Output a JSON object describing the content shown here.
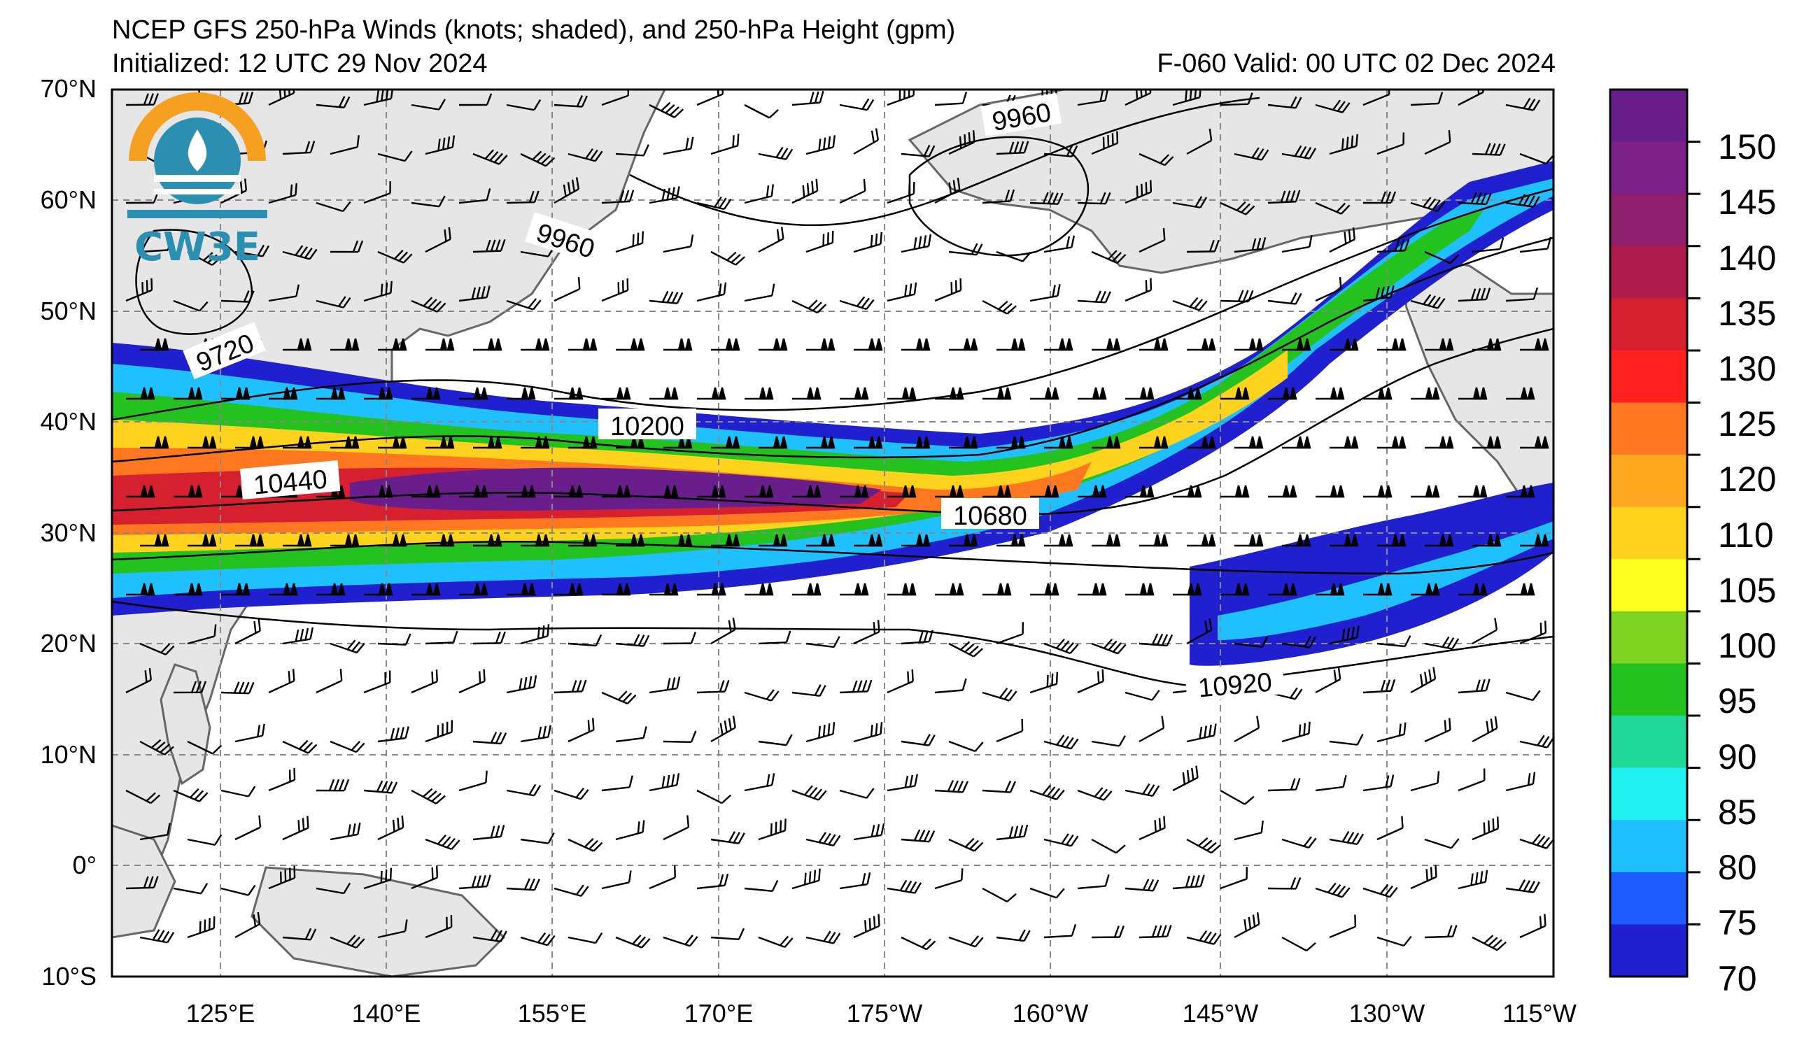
{
  "title": {
    "line1": "NCEP GFS 250-hPa Winds (knots; shaded), and 250-hPa Height (gpm)",
    "line2": "Initialized: 12 UTC 29 Nov 2024",
    "valid": "F-060  Valid: 00 UTC 02 Dec 2024"
  },
  "logo": {
    "text": "CW3E",
    "icon": "cw3e-logo-icon",
    "colors": {
      "orange": "#f5a021",
      "teal": "#2a8fb0"
    }
  },
  "map": {
    "projection": "cylindrical",
    "lon_range": [
      "115°E",
      "115°W"
    ],
    "lat_range": [
      -10,
      70
    ],
    "grid": "dashed",
    "land_color": "#e6e6e6",
    "coast_color": "#666666"
  },
  "lat_labels": [
    "70°N",
    "60°N",
    "50°N",
    "40°N",
    "30°N",
    "20°N",
    "10°N",
    "0°",
    "10°S"
  ],
  "lon_labels": [
    "125°E",
    "140°E",
    "155°E",
    "170°E",
    "175°W",
    "160°W",
    "145°W",
    "130°W",
    "115°W"
  ],
  "contour_labels": [
    "9960",
    "9960",
    "9720",
    "10200",
    "10440",
    "10680",
    "10920"
  ],
  "colorbar": {
    "ticks": [
      "150",
      "145",
      "140",
      "135",
      "130",
      "125",
      "120",
      "110",
      "105",
      "100",
      "95",
      "90",
      "85",
      "80",
      "75",
      "70"
    ],
    "colors": [
      "#6a1e8c",
      "#7a2086",
      "#8e1f6e",
      "#b01c4d",
      "#d62030",
      "#ff2020",
      "#ff7820",
      "#ffa820",
      "#ffd21e",
      "#ffff20",
      "#7ed321",
      "#24c21e",
      "#21d99a",
      "#21f0f0",
      "#1fc0ff",
      "#1e5cff",
      "#2020d0"
    ]
  }
}
